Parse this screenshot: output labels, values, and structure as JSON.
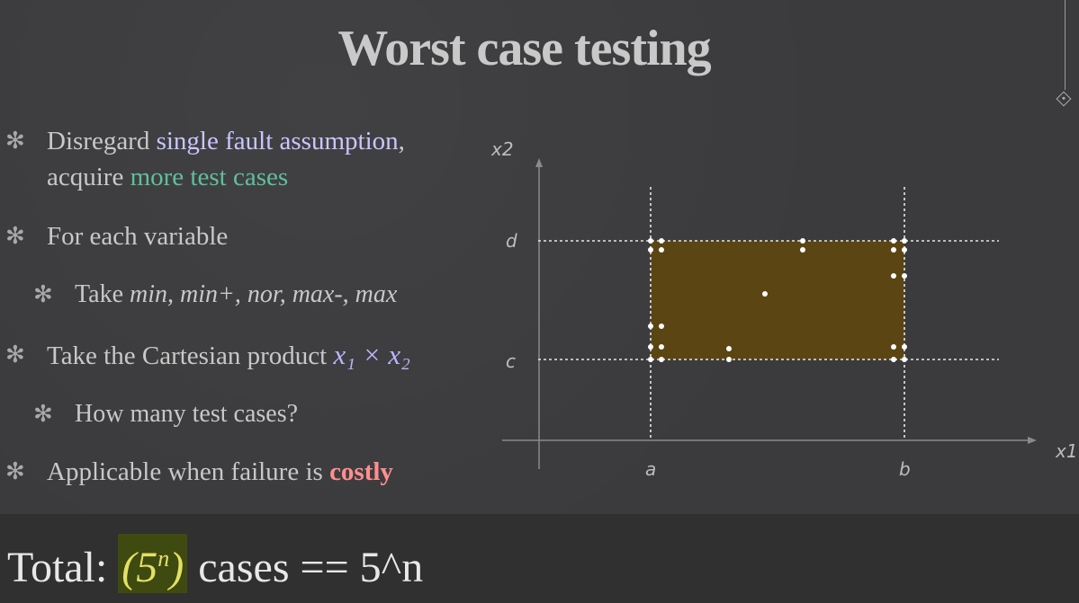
{
  "slide": {
    "title": "Worst case testing",
    "bullets": [
      {
        "pre": "Disregard ",
        "hl1": "single fault assumption",
        "mid": ",",
        "line2_hl": "more test cases",
        "line2_pre": "acquire "
      },
      {
        "text": "For each variable"
      },
      {
        "pre": "Take ",
        "it": "min, min+, nor, max-, max"
      },
      {
        "pre": "Take the Cartesian product ",
        "math": "x₁ × x₂"
      },
      {
        "text": "How many test cases?"
      },
      {
        "pre": "Applicable when failure is ",
        "hl": "costly"
      }
    ]
  },
  "diagram": {
    "axis_labels": {
      "x": "x1",
      "y": "x2"
    },
    "tick_labels": {
      "a": "a",
      "b": "b",
      "c": "c",
      "d": "d"
    },
    "region_color": "#5b4513"
  },
  "bottom": {
    "prefix": "Total: ",
    "box_text": "(5",
    "box_sup": "n",
    "box_close": ")",
    "suffix": " cases == 5^n"
  }
}
